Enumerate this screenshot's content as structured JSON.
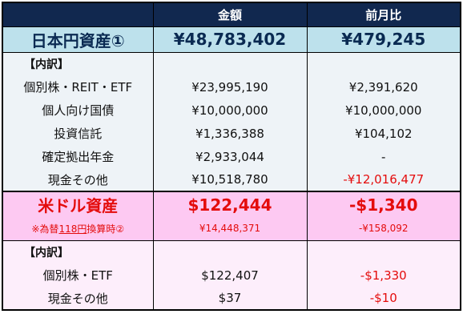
{
  "header": {
    "col_amount": "金額",
    "col_change": "前月比"
  },
  "jpy": {
    "total_label": "日本円資産①",
    "total_amount": "¥48,783,402",
    "total_change": "¥479,245",
    "breakdown_label": "【内訳】",
    "rows": [
      {
        "label": "個別株・REIT・ETF",
        "amount": "¥23,995,190",
        "change": "¥2,391,620"
      },
      {
        "label": "個人向け国債",
        "amount": "¥10,000,000",
        "change": "¥10,000,000"
      },
      {
        "label": "投資信託",
        "amount": "¥1,336,388",
        "change": "¥104,102"
      },
      {
        "label": "確定拠出年金",
        "amount": "¥2,933,044",
        "change": "-"
      },
      {
        "label": "現金その他",
        "amount": "¥10,518,780",
        "change": "-¥12,016,477"
      }
    ]
  },
  "usd": {
    "total_label": "米ドル資産",
    "total_amount": "$122,444",
    "total_change": "-$1,340",
    "conv_label_prefix": "※為替",
    "conv_label_rate": "118円",
    "conv_label_suffix": "換算時②",
    "conv_amount": "¥14,448,371",
    "conv_change": "-¥158,092",
    "breakdown_label": "【内訳】",
    "rows": [
      {
        "label": "個別株・ETF",
        "amount": "$122,407",
        "change": "-$1,330"
      },
      {
        "label": "現金その他",
        "amount": "$37",
        "change": "-$10"
      }
    ]
  },
  "colors": {
    "header_bg": "#11284f",
    "jpy_total_bg": "#bde1ec",
    "jpy_rows_bg": "#eef3f7",
    "usd_total_bg": "#fdc9f2",
    "usd_rows_bg": "#fdeefb",
    "negative": "#e40c0c"
  }
}
